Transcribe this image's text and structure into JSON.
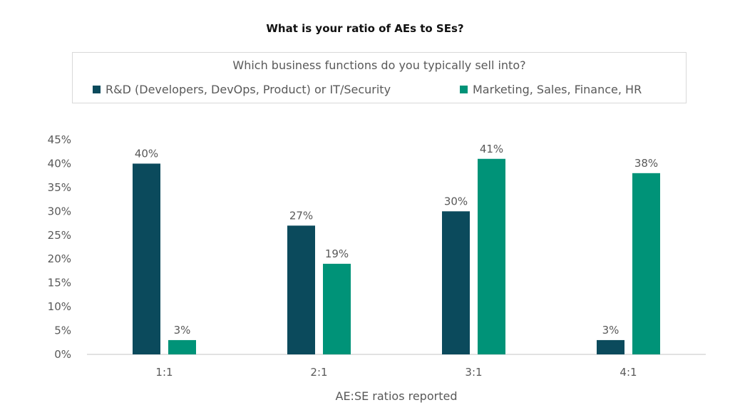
{
  "chart_data": {
    "type": "bar",
    "title": "What is your ratio of AEs to SEs?",
    "legend_title": "Which business functions do you typically sell into?",
    "legend_position": "top",
    "xlabel": "AE:SE ratios reported",
    "ylabel": "",
    "categories": [
      "1:1",
      "2:1",
      "3:1",
      "4:1"
    ],
    "series": [
      {
        "name": "R&D (Developers, DevOps, Product) or IT/Security",
        "color": "#0b4a5c",
        "values": [
          40,
          27,
          30,
          3
        ]
      },
      {
        "name": "Marketing, Sales, Finance, HR",
        "color": "#009378",
        "values": [
          3,
          19,
          41,
          38
        ]
      }
    ],
    "ylim": [
      0,
      45
    ],
    "yticks": [
      "0%",
      "5%",
      "10%",
      "15%",
      "20%",
      "25%",
      "30%",
      "35%",
      "40%",
      "45%"
    ],
    "value_suffix": "%",
    "grid": false
  }
}
